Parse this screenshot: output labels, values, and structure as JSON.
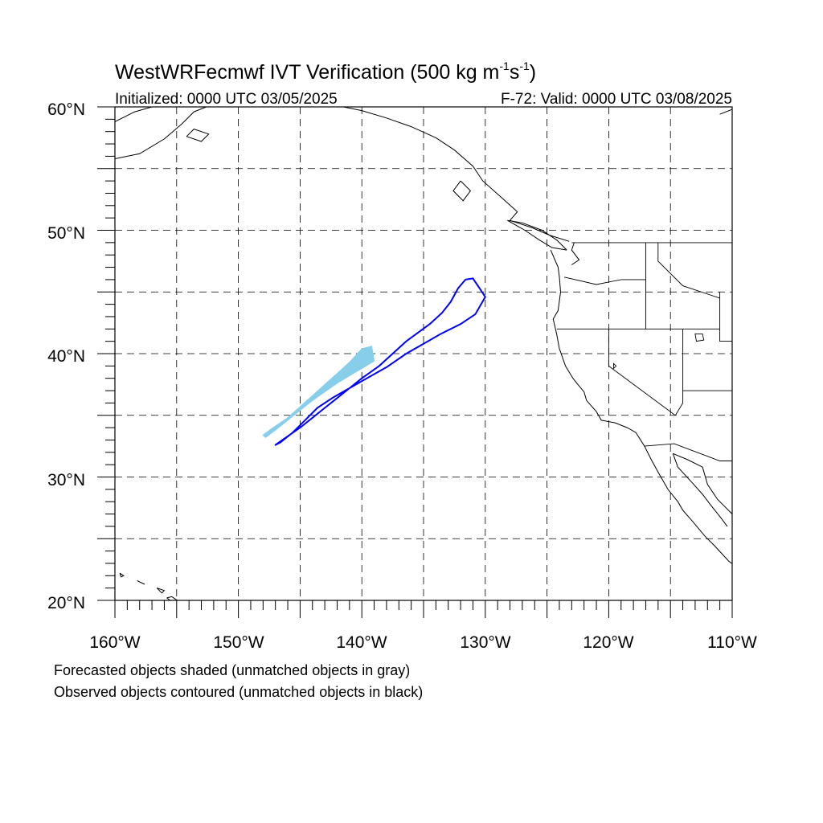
{
  "title": {
    "main": "WestWRFecmwf IVT Verification (500 kg m",
    "sup1": "-1",
    "mid": "s",
    "sup2": "-1",
    "end": ")"
  },
  "subtitle_left": "Initialized: 0000 UTC 03/05/2025",
  "subtitle_right": "F-72: Valid: 0000 UTC 03/08/2025",
  "lat_labels": [
    "60°N",
    "50°N",
    "40°N",
    "30°N",
    "20°N"
  ],
  "lon_labels": [
    "160°W",
    "150°W",
    "140°W",
    "130°W",
    "120°W",
    "110°W"
  ],
  "notes": [
    "Forecasted objects shaded (unmatched objects in gray)",
    "Observed objects contoured (unmatched objects in black)"
  ],
  "map_extent": {
    "lon": [
      -160,
      -110
    ],
    "lat": [
      20,
      60
    ]
  },
  "colors": {
    "forecast_fill": "#87CEEB",
    "observed_contour": "#0000FF",
    "coast": "#000000",
    "grid": "#000000"
  },
  "forecast_object": {
    "lonlat": [
      [
        -148.0,
        33.4
      ],
      [
        -147.2,
        34.0
      ],
      [
        -146.0,
        34.8
      ],
      [
        -145.0,
        35.7
      ],
      [
        -144.0,
        36.6
      ],
      [
        -143.0,
        37.5
      ],
      [
        -142.0,
        38.4
      ],
      [
        -141.0,
        39.3
      ],
      [
        -140.0,
        40.4
      ],
      [
        -139.2,
        40.6
      ],
      [
        -139.0,
        39.4
      ],
      [
        -140.0,
        38.8
      ],
      [
        -141.0,
        38.2
      ],
      [
        -142.0,
        37.6
      ],
      [
        -143.0,
        36.9
      ],
      [
        -144.0,
        36.2
      ],
      [
        -145.0,
        35.4
      ],
      [
        -146.0,
        34.6
      ],
      [
        -147.0,
        33.8
      ],
      [
        -147.8,
        33.2
      ]
    ]
  },
  "observed_object": {
    "lonlat": [
      [
        -147.0,
        32.6
      ],
      [
        -146.0,
        33.3
      ],
      [
        -145.0,
        34.0
      ],
      [
        -144.0,
        34.8
      ],
      [
        -143.0,
        35.6
      ],
      [
        -142.0,
        36.4
      ],
      [
        -141.0,
        37.2
      ],
      [
        -140.0,
        38.0
      ],
      [
        -138.6,
        39.0
      ],
      [
        -137.5,
        40.0
      ],
      [
        -136.4,
        41.0
      ],
      [
        -134.5,
        42.4
      ],
      [
        -133.5,
        43.3
      ],
      [
        -132.8,
        44.2
      ],
      [
        -132.2,
        45.3
      ],
      [
        -131.6,
        46.0
      ],
      [
        -131.0,
        46.1
      ],
      [
        -130.4,
        45.2
      ],
      [
        -130.0,
        44.6
      ],
      [
        -130.8,
        43.2
      ],
      [
        -132.0,
        42.4
      ],
      [
        -133.6,
        41.6
      ],
      [
        -135.0,
        40.8
      ],
      [
        -136.4,
        40.0
      ],
      [
        -138.0,
        38.9
      ],
      [
        -139.6,
        38.0
      ],
      [
        -141.0,
        37.2
      ],
      [
        -142.4,
        36.4
      ],
      [
        -143.6,
        35.6
      ],
      [
        -144.6,
        34.6
      ],
      [
        -145.6,
        33.6
      ],
      [
        -146.6,
        32.8
      ]
    ]
  },
  "land_features": {
    "us_states": [
      [
        [
          -123.6,
          46.2
        ],
        [
          -121.0,
          45.6
        ],
        [
          -119.0,
          46.0
        ],
        [
          -117.0,
          46.0
        ]
      ],
      [
        [
          -124.2,
          42.0
        ],
        [
          -117.0,
          42.0
        ],
        [
          -111.0,
          42.0
        ]
      ],
      [
        [
          -120.0,
          42.0
        ],
        [
          -120.0,
          39.0
        ],
        [
          -114.6,
          35.0
        ]
      ],
      [
        [
          -117.0,
          49.0
        ],
        [
          -117.0,
          42.0
        ]
      ],
      [
        [
          -116.0,
          49.0
        ],
        [
          -116.0,
          47.5
        ],
        [
          -114.0,
          45.5
        ],
        [
          -111.0,
          44.5
        ]
      ],
      [
        [
          -114.0,
          42.0
        ],
        [
          -114.0,
          37.0
        ],
        [
          -110.0,
          37.0
        ]
      ],
      [
        [
          -114.0,
          37.0
        ],
        [
          -114.0,
          36.0
        ],
        [
          -114.6,
          35.0
        ]
      ],
      [
        [
          -123.0,
          49.0
        ],
        [
          -110.0,
          49.0
        ]
      ],
      [
        [
          -111.0,
          45.0
        ],
        [
          -111.0,
          41.0
        ],
        [
          -110.0,
          41.0
        ]
      ],
      [
        [
          -117.1,
          32.5
        ],
        [
          -114.7,
          32.7
        ],
        [
          -111.0,
          31.3
        ],
        [
          -110.0,
          31.3
        ]
      ]
    ],
    "coast": [
      [
        [
          -124.7,
          48.4
        ],
        [
          -124.1,
          47.0
        ],
        [
          -124.0,
          46.2
        ],
        [
          -123.9,
          45.0
        ],
        [
          -124.1,
          43.5
        ],
        [
          -124.5,
          42.8
        ],
        [
          -124.2,
          41.5
        ],
        [
          -124.0,
          40.4
        ],
        [
          -123.5,
          39.0
        ],
        [
          -122.9,
          38.0
        ],
        [
          -122.5,
          37.5
        ],
        [
          -122.0,
          36.9
        ],
        [
          -121.8,
          36.2
        ],
        [
          -121.0,
          35.3
        ],
        [
          -120.6,
          34.6
        ],
        [
          -119.5,
          34.4
        ],
        [
          -118.5,
          34.0
        ],
        [
          -117.8,
          33.6
        ],
        [
          -117.1,
          32.5
        ],
        [
          -116.6,
          31.5
        ],
        [
          -116.0,
          30.4
        ],
        [
          -115.2,
          29.0
        ],
        [
          -114.4,
          28.0
        ],
        [
          -114.0,
          27.3
        ],
        [
          -113.2,
          26.4
        ],
        [
          -112.2,
          25.2
        ],
        [
          -111.4,
          24.4
        ],
        [
          -110.3,
          23.2
        ],
        [
          -109.9,
          22.9
        ]
      ],
      [
        [
          -114.8,
          31.9
        ],
        [
          -114.4,
          30.8
        ],
        [
          -113.2,
          29.5
        ],
        [
          -112.4,
          28.6
        ],
        [
          -111.8,
          27.8
        ],
        [
          -111.0,
          26.8
        ],
        [
          -110.4,
          26.0
        ]
      ],
      [
        [
          -114.8,
          31.9
        ],
        [
          -113.6,
          31.4
        ],
        [
          -112.4,
          30.8
        ],
        [
          -112.0,
          29.4
        ],
        [
          -111.2,
          28.2
        ],
        [
          -110.6,
          27.6
        ],
        [
          -110.0,
          27.0
        ]
      ],
      [
        [
          -123.2,
          49.1
        ],
        [
          -124.8,
          49.6
        ],
        [
          -126.2,
          50.2
        ],
        [
          -128.0,
          50.8
        ],
        [
          -127.4,
          51.5
        ],
        [
          -128.4,
          52.4
        ],
        [
          -130.2,
          54.0
        ],
        [
          -131.0,
          55.2
        ],
        [
          -132.5,
          56.5
        ],
        [
          -134.0,
          57.5
        ],
        [
          -136.0,
          58.4
        ],
        [
          -138.0,
          59.1
        ],
        [
          -140.0,
          59.7
        ],
        [
          -141.5,
          60.0
        ]
      ],
      [
        [
          -122.8,
          49.0
        ],
        [
          -123.0,
          48.4
        ],
        [
          -122.4,
          47.6
        ],
        [
          -123.0,
          47.2
        ]
      ],
      [
        [
          -123.4,
          48.4
        ],
        [
          -124.6,
          48.6
        ],
        [
          -125.6,
          49.2
        ],
        [
          -126.8,
          50.0
        ],
        [
          -128.2,
          50.8
        ],
        [
          -127.0,
          50.6
        ],
        [
          -125.4,
          50.0
        ],
        [
          -124.2,
          49.2
        ],
        [
          -123.4,
          48.4
        ]
      ],
      [
        [
          -132.0,
          54.0
        ],
        [
          -131.2,
          53.2
        ],
        [
          -131.8,
          52.4
        ],
        [
          -132.6,
          53.2
        ],
        [
          -132.0,
          54.0
        ]
      ],
      [
        [
          -160.0,
          55.8
        ],
        [
          -158.0,
          56.2
        ],
        [
          -156.0,
          57.4
        ],
        [
          -154.6,
          58.6
        ],
        [
          -153.6,
          59.6
        ],
        [
          -152.6,
          60.0
        ]
      ],
      [
        [
          -160.0,
          58.8
        ],
        [
          -158.4,
          59.6
        ],
        [
          -157.0,
          60.0
        ]
      ],
      [
        [
          -154.2,
          57.6
        ],
        [
          -153.0,
          57.2
        ],
        [
          -152.4,
          57.8
        ],
        [
          -153.6,
          58.2
        ],
        [
          -154.2,
          57.6
        ]
      ],
      [
        [
          -111.0,
          59.4
        ],
        [
          -110.0,
          59.8
        ]
      ],
      [
        [
          -155.8,
          20.2
        ],
        [
          -155.0,
          19.6
        ],
        [
          -154.8,
          19.9
        ],
        [
          -155.4,
          20.3
        ],
        [
          -155.8,
          20.2
        ]
      ],
      [
        [
          -157.8,
          21.4
        ],
        [
          -157.6,
          21.3
        ],
        [
          -158.2,
          21.6
        ],
        [
          -157.8,
          21.4
        ]
      ],
      [
        [
          -159.6,
          22.2
        ],
        [
          -159.3,
          22.0
        ],
        [
          -159.5,
          21.9
        ],
        [
          -159.6,
          22.2
        ]
      ],
      [
        [
          -156.6,
          21.0
        ],
        [
          -156.0,
          20.8
        ],
        [
          -156.2,
          20.6
        ],
        [
          -156.6,
          21.0
        ]
      ]
    ],
    "lakes": [
      [
        [
          -113.0,
          41.6
        ],
        [
          -112.4,
          41.6
        ],
        [
          -112.3,
          41.1
        ],
        [
          -112.9,
          41.0
        ],
        [
          -113.0,
          41.6
        ]
      ],
      [
        [
          -119.6,
          39.2
        ],
        [
          -119.4,
          39.0
        ],
        [
          -119.6,
          38.8
        ],
        [
          -119.6,
          39.2
        ]
      ]
    ]
  }
}
